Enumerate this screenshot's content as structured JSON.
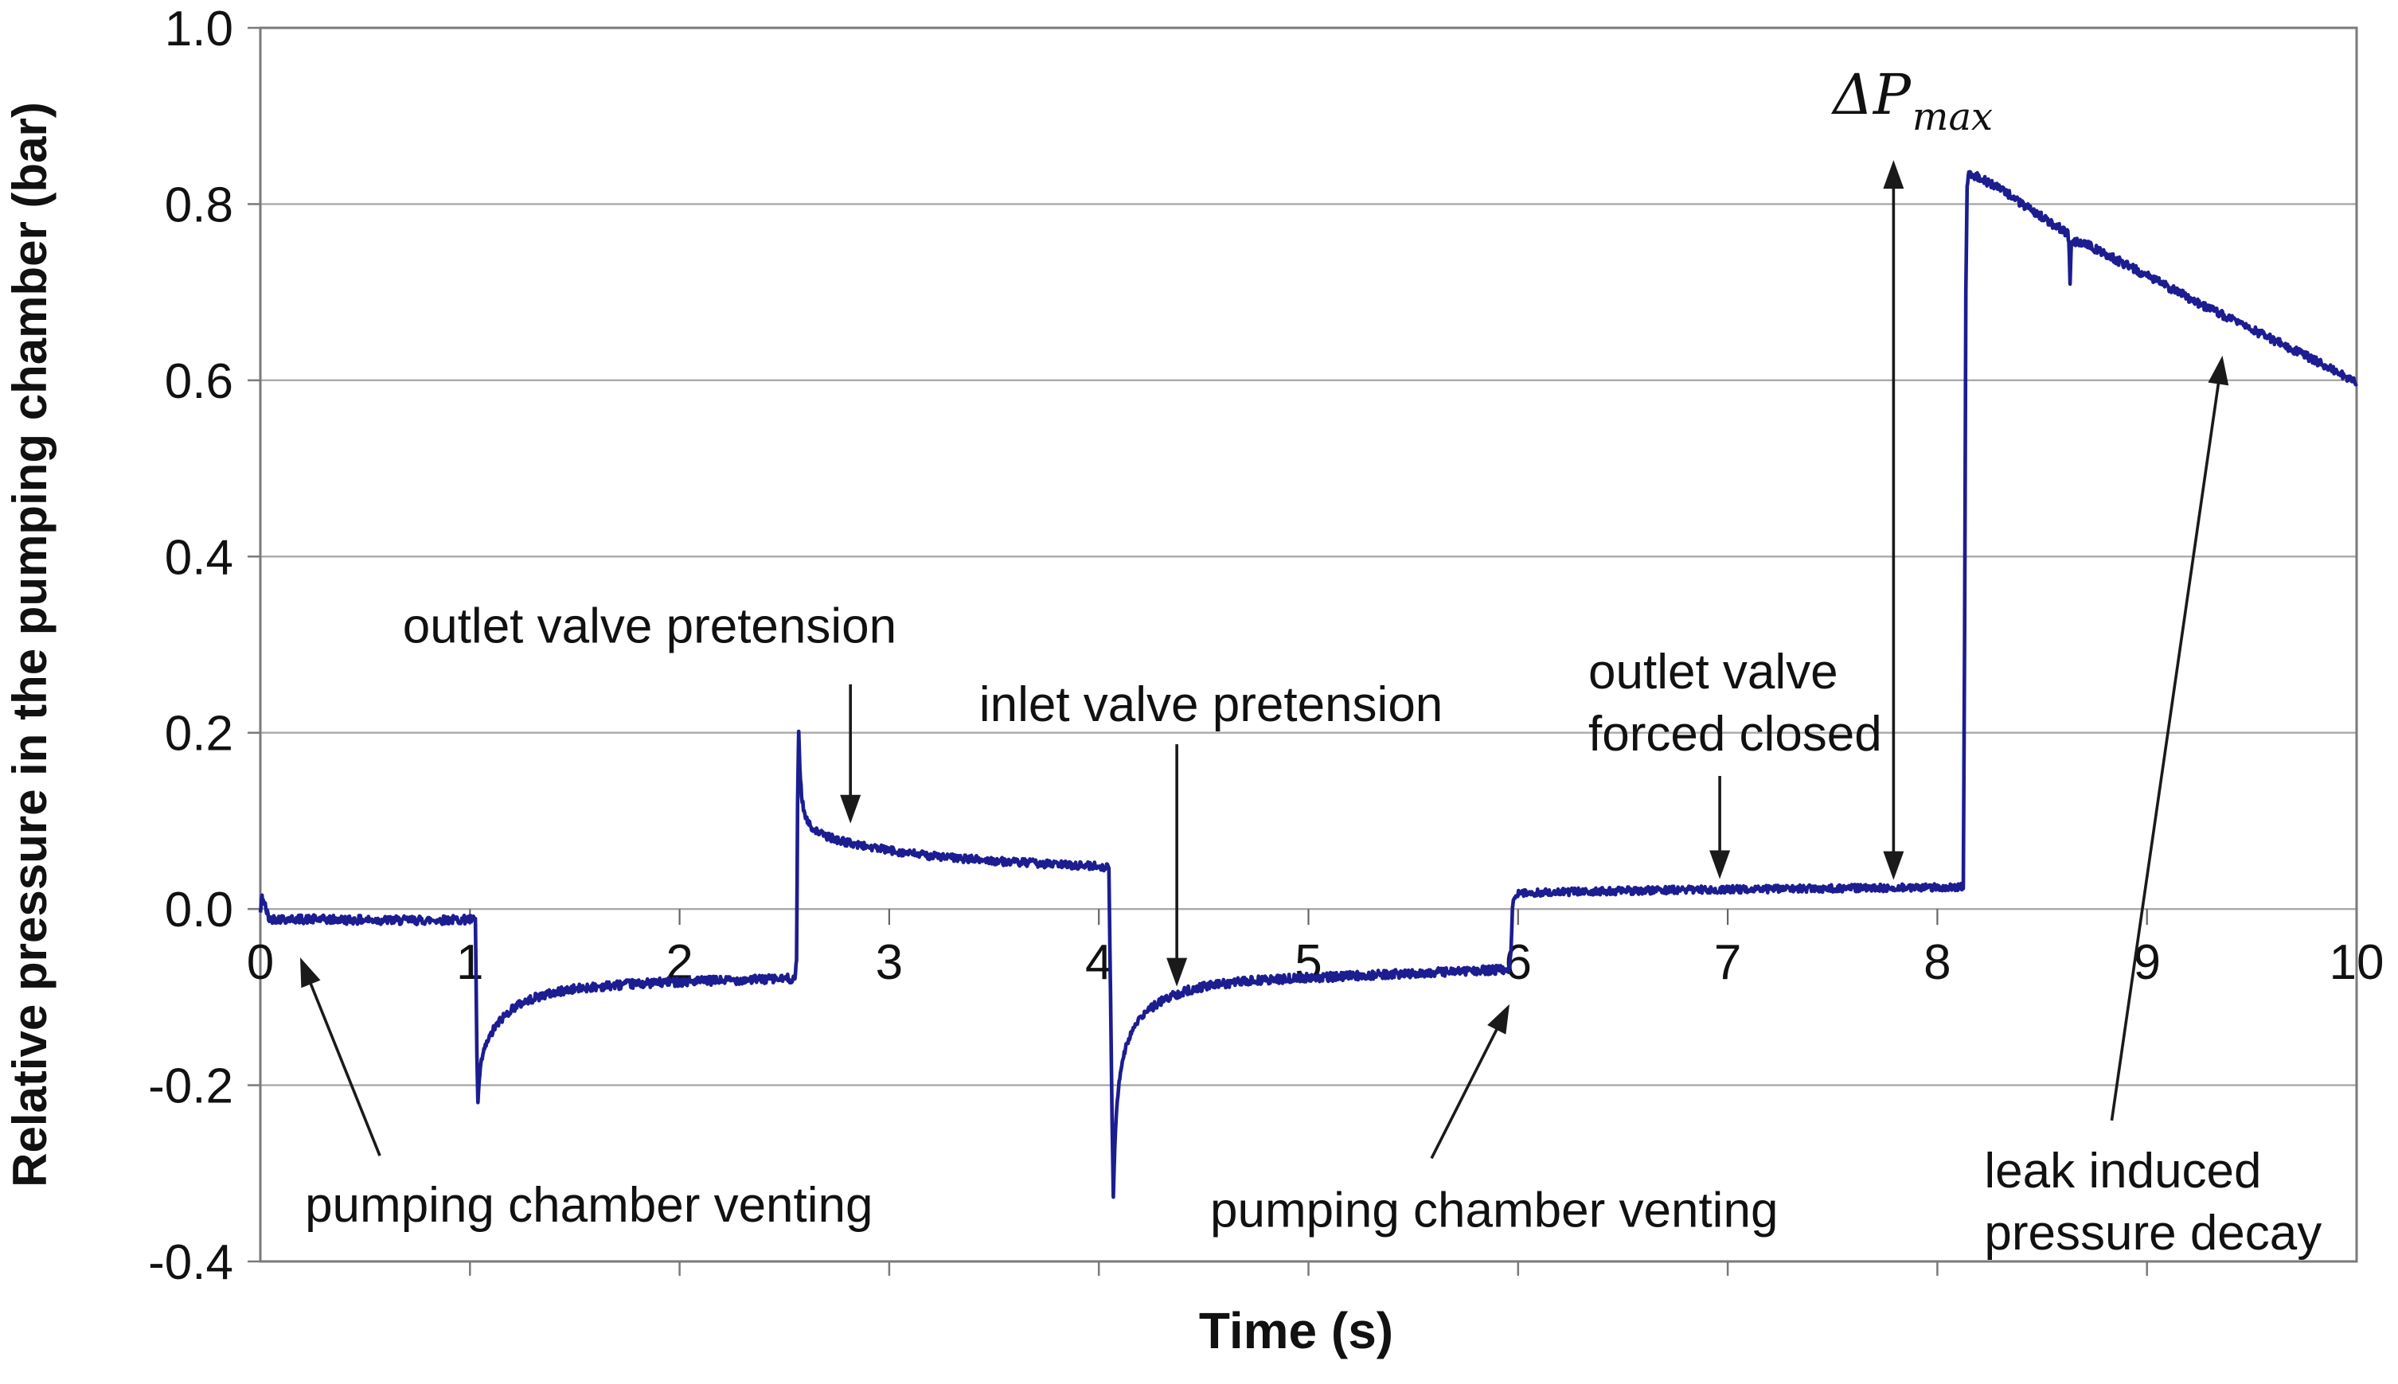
{
  "figure": {
    "background": "#ffffff"
  },
  "axes": {
    "x_title": "Time (s)",
    "y_title": "Relative pressure in the pumping chamber (bar)"
  },
  "chart_data": {
    "type": "line",
    "title": "",
    "xlabel": "Time (s)",
    "ylabel": "Relative pressure in the pumping chamber (bar)",
    "xlim": [
      0,
      10
    ],
    "ylim": [
      -0.4,
      1.0
    ],
    "grid": true,
    "legend_position": "none",
    "x_ticks": [
      "0",
      "1",
      "2",
      "3",
      "4",
      "5",
      "6",
      "7",
      "8",
      "9",
      "10"
    ],
    "x_tick_values": [
      0,
      1,
      2,
      3,
      4,
      5,
      6,
      7,
      8,
      9,
      10
    ],
    "y_ticks": [
      "1.0",
      "0.8",
      "0.6",
      "0.4",
      "0.2",
      "0.0",
      "-0.2",
      "-0.4"
    ],
    "y_tick_values": [
      1.0,
      0.8,
      0.6,
      0.4,
      0.2,
      0.0,
      -0.2,
      -0.4
    ],
    "colors": {
      "trace": "#1c1d91",
      "gridline": "#a9a9a9",
      "border": "#7a7a7a",
      "tick": "#666666",
      "arrow": "#1a1a1a",
      "text": "#111111"
    },
    "series": [
      {
        "name": "relative pressure in the pumping chamber",
        "color": "#1c1d91",
        "anchors": [
          [
            0.0,
            -0.005
          ],
          [
            0.008,
            0.014
          ],
          [
            0.02,
            0.006
          ],
          [
            0.04,
            -0.011
          ],
          [
            0.3,
            -0.012
          ],
          [
            0.7,
            -0.013
          ],
          [
            1.0,
            -0.012
          ],
          [
            1.026,
            -0.013
          ],
          [
            1.033,
            -0.165
          ],
          [
            1.038,
            -0.22
          ],
          [
            1.044,
            -0.195
          ],
          [
            1.055,
            -0.172
          ],
          [
            1.07,
            -0.158
          ],
          [
            1.09,
            -0.147
          ],
          [
            1.115,
            -0.136
          ],
          [
            1.15,
            -0.125
          ],
          [
            1.2,
            -0.113
          ],
          [
            1.26,
            -0.105
          ],
          [
            1.34,
            -0.0985
          ],
          [
            1.45,
            -0.0925
          ],
          [
            1.58,
            -0.0885
          ],
          [
            1.75,
            -0.0855
          ],
          [
            1.95,
            -0.083
          ],
          [
            2.15,
            -0.0815
          ],
          [
            2.35,
            -0.08
          ],
          [
            2.55,
            -0.079
          ],
          [
            2.558,
            -0.06
          ],
          [
            2.563,
            0.12
          ],
          [
            2.568,
            0.203
          ],
          [
            2.574,
            0.16
          ],
          [
            2.582,
            0.128
          ],
          [
            2.594,
            0.11
          ],
          [
            2.61,
            0.0995
          ],
          [
            2.63,
            0.0925
          ],
          [
            2.66,
            0.0875
          ],
          [
            2.71,
            0.082
          ],
          [
            2.78,
            0.0765
          ],
          [
            2.88,
            0.0715
          ],
          [
            3.0,
            0.0665
          ],
          [
            3.15,
            0.0615
          ],
          [
            3.35,
            0.057
          ],
          [
            3.57,
            0.0535
          ],
          [
            3.8,
            0.0505
          ],
          [
            4.0,
            0.0485
          ],
          [
            4.048,
            0.047
          ],
          [
            4.056,
            -0.1
          ],
          [
            4.063,
            -0.24
          ],
          [
            4.069,
            -0.327
          ],
          [
            4.076,
            -0.27
          ],
          [
            4.085,
            -0.225
          ],
          [
            4.097,
            -0.195
          ],
          [
            4.112,
            -0.172
          ],
          [
            4.13,
            -0.1555
          ],
          [
            4.155,
            -0.14
          ],
          [
            4.19,
            -0.1265
          ],
          [
            4.235,
            -0.1145
          ],
          [
            4.29,
            -0.1055
          ],
          [
            4.36,
            -0.0975
          ],
          [
            4.44,
            -0.0915
          ],
          [
            4.54,
            -0.0865
          ],
          [
            4.66,
            -0.083
          ],
          [
            4.8,
            -0.0805
          ],
          [
            4.97,
            -0.0785
          ],
          [
            5.15,
            -0.0765
          ],
          [
            5.35,
            -0.0745
          ],
          [
            5.55,
            -0.0725
          ],
          [
            5.75,
            -0.0705
          ],
          [
            5.958,
            -0.0685
          ],
          [
            5.966,
            -0.05
          ],
          [
            5.973,
            0.0
          ],
          [
            5.98,
            0.0145
          ],
          [
            5.995,
            0.0175
          ],
          [
            6.1,
            0.0185
          ],
          [
            6.35,
            0.02
          ],
          [
            6.7,
            0.0215
          ],
          [
            7.1,
            0.0225
          ],
          [
            7.55,
            0.0235
          ],
          [
            8.0,
            0.0245
          ],
          [
            8.124,
            0.025
          ],
          [
            8.13,
            0.3
          ],
          [
            8.136,
            0.7
          ],
          [
            8.142,
            0.82
          ],
          [
            8.15,
            0.8355
          ],
          [
            8.165,
            0.8335
          ],
          [
            8.2,
            0.8295
          ],
          [
            8.27,
            0.8215
          ],
          [
            8.35,
            0.8095
          ],
          [
            8.45,
            0.793
          ],
          [
            8.55,
            0.7775
          ],
          [
            8.62,
            0.7675
          ],
          [
            8.627,
            0.76
          ],
          [
            8.633,
            0.7125
          ],
          [
            8.639,
            0.7575
          ],
          [
            8.7,
            0.7555
          ],
          [
            8.8,
            0.7435
          ],
          [
            8.92,
            0.7285
          ],
          [
            9.05,
            0.7125
          ],
          [
            9.2,
            0.6935
          ],
          [
            9.35,
            0.6755
          ],
          [
            9.5,
            0.658
          ],
          [
            9.65,
            0.6405
          ],
          [
            9.8,
            0.6225
          ],
          [
            9.92,
            0.6075
          ],
          [
            10.0,
            0.596
          ]
        ],
        "noise_bands": [
          [
            0.0,
            1.026,
            0.005
          ],
          [
            1.026,
            1.1,
            0.0035
          ],
          [
            1.1,
            2.55,
            0.005
          ],
          [
            2.55,
            2.7,
            0.0035
          ],
          [
            2.7,
            4.05,
            0.0045
          ],
          [
            4.05,
            4.25,
            0.0035
          ],
          [
            4.25,
            5.96,
            0.005
          ],
          [
            5.96,
            8.125,
            0.0042
          ],
          [
            8.125,
            8.16,
            0.002
          ],
          [
            8.16,
            10.0,
            0.0048
          ]
        ]
      }
    ],
    "key_events": {
      "venting_1_span_s": [
        0,
        1.03
      ],
      "outlet_pretension_spike": {
        "t": 2.57,
        "peak_bar": 0.205,
        "settle_bar": 0.05
      },
      "inlet_pretension_dip": {
        "t": 4.07,
        "min_bar": -0.33,
        "settle_bar": -0.07
      },
      "venting_2_dip": {
        "t": 1.04,
        "min_bar": -0.22
      },
      "forced_closed_plateau_bar": 0.02,
      "peak_jump": {
        "t": 8.14,
        "peak_bar": 0.835
      },
      "end_value_bar": 0.596
    },
    "annotations": [
      {
        "id": "venting-1",
        "lines": [
          "pumping chamber venting"
        ],
        "anchor": "left",
        "t": 0.213,
        "p": -0.335,
        "arrow": {
          "t1": 0.57,
          "p1": -0.28,
          "t2": 0.19,
          "p2": -0.055,
          "heads": "end"
        }
      },
      {
        "id": "outlet-pretension",
        "lines": [
          "outlet valve pretension"
        ],
        "anchor": "middle",
        "t": 1.857,
        "p": 0.322,
        "arrow": {
          "t1": 2.815,
          "p1": 0.255,
          "t2": 2.815,
          "p2": 0.097,
          "heads": "end"
        }
      },
      {
        "id": "inlet-pretension",
        "lines": [
          "inlet valve pretension"
        ],
        "anchor": "middle",
        "t": 4.535,
        "p": 0.233,
        "arrow": {
          "t1": 4.372,
          "p1": 0.187,
          "t2": 4.372,
          "p2": -0.088,
          "heads": "end"
        }
      },
      {
        "id": "venting-2",
        "lines": [
          "pumping chamber venting"
        ],
        "anchor": "left",
        "t": 4.531,
        "p": -0.341,
        "arrow": {
          "t1": 5.587,
          "p1": -0.283,
          "t2": 5.959,
          "p2": -0.108,
          "heads": "end"
        }
      },
      {
        "id": "outlet-forced-closed",
        "lines": [
          "outlet valve",
          "forced closed"
        ],
        "anchor": "left",
        "t": 6.335,
        "p": 0.27,
        "arrow": {
          "t1": 6.962,
          "p1": 0.151,
          "t2": 6.962,
          "p2": 0.034,
          "heads": "end"
        }
      },
      {
        "id": "delta-p-max",
        "math": {
          "main": "ΔP",
          "sub": "max"
        },
        "anchor": "left",
        "t": 7.502,
        "p": 0.9025,
        "arrow": {
          "t1": 7.791,
          "p1": 0.85,
          "t2": 7.791,
          "p2": 0.033,
          "heads": "both"
        }
      },
      {
        "id": "leak-decay",
        "lines": [
          "leak induced",
          "pressure decay"
        ],
        "anchor": "left",
        "t": 8.224,
        "p": -0.296,
        "arrow": {
          "t1": 8.832,
          "p1": -0.24,
          "t2": 9.36,
          "p2": 0.628,
          "heads": "end"
        }
      }
    ]
  }
}
